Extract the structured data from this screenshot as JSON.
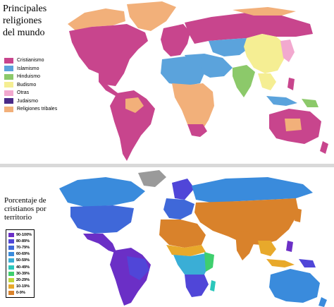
{
  "top_map": {
    "title_lines": [
      "Principales",
      "religiones",
      "del mundo"
    ],
    "legend": [
      {
        "label": "Cristianismo",
        "color": "#c8458d"
      },
      {
        "label": "Islamismo",
        "color": "#5ba3dc"
      },
      {
        "label": "Hinduismo",
        "color": "#8cc96a"
      },
      {
        "label": "Budismo",
        "color": "#f5ee93"
      },
      {
        "label": "Otras",
        "color": "#f2a9cf"
      },
      {
        "label": "Judaismo",
        "color": "#4a2a88"
      },
      {
        "label": "Religiones tribales",
        "color": "#f2b07a"
      }
    ]
  },
  "bottom_map": {
    "title_lines": [
      "Porcentaje de",
      "cristianos por",
      "territorio"
    ],
    "legend": [
      {
        "label": "90-100%",
        "color": "#6b2fc6"
      },
      {
        "label": "80-89%",
        "color": "#5046d8"
      },
      {
        "label": "70-79%",
        "color": "#3f68d9"
      },
      {
        "label": "60-69%",
        "color": "#3a8bdc"
      },
      {
        "label": "50-59%",
        "color": "#3aaed6"
      },
      {
        "label": "40-49%",
        "color": "#2bc7bb"
      },
      {
        "label": "30-39%",
        "color": "#3fcf6e"
      },
      {
        "label": "20-29%",
        "color": "#bfd63a"
      },
      {
        "label": "10-19%",
        "color": "#e8a92b"
      },
      {
        "label": "0-9%",
        "color": "#d9822b"
      }
    ]
  }
}
